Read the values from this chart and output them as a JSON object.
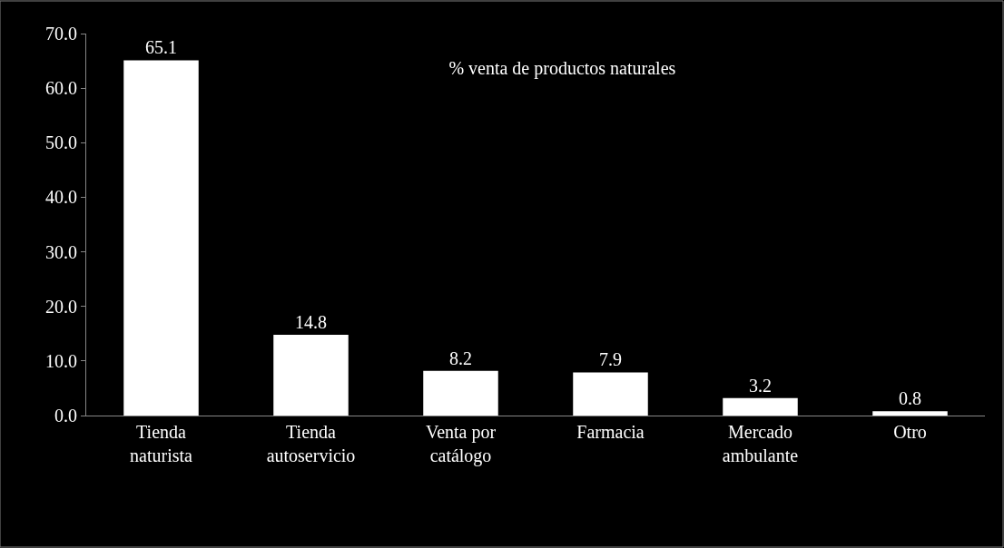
{
  "chart_data": {
    "type": "bar",
    "title": "% venta de productos naturales",
    "categories": [
      "Tienda\nnaturista",
      "Tienda\nautoservicio",
      "Venta por\ncatálogo",
      "Farmacia",
      "Mercado\nambulante",
      "Otro"
    ],
    "values": [
      65.1,
      14.8,
      8.2,
      7.9,
      3.2,
      0.8
    ],
    "color": "#ffffff",
    "ylim": [
      0,
      70
    ],
    "yticks": [
      {
        "value": 0,
        "label": "0.0"
      },
      {
        "value": 10,
        "label": "10.0"
      },
      {
        "value": 20,
        "label": "20.0"
      },
      {
        "value": 30,
        "label": "30.0"
      },
      {
        "value": 40,
        "label": "40.0"
      },
      {
        "value": 50,
        "label": "50.0"
      },
      {
        "value": 60,
        "label": "60.0"
      },
      {
        "value": 70,
        "label": "70.0"
      }
    ],
    "data_labels": true,
    "grid": false,
    "legend": false
  }
}
